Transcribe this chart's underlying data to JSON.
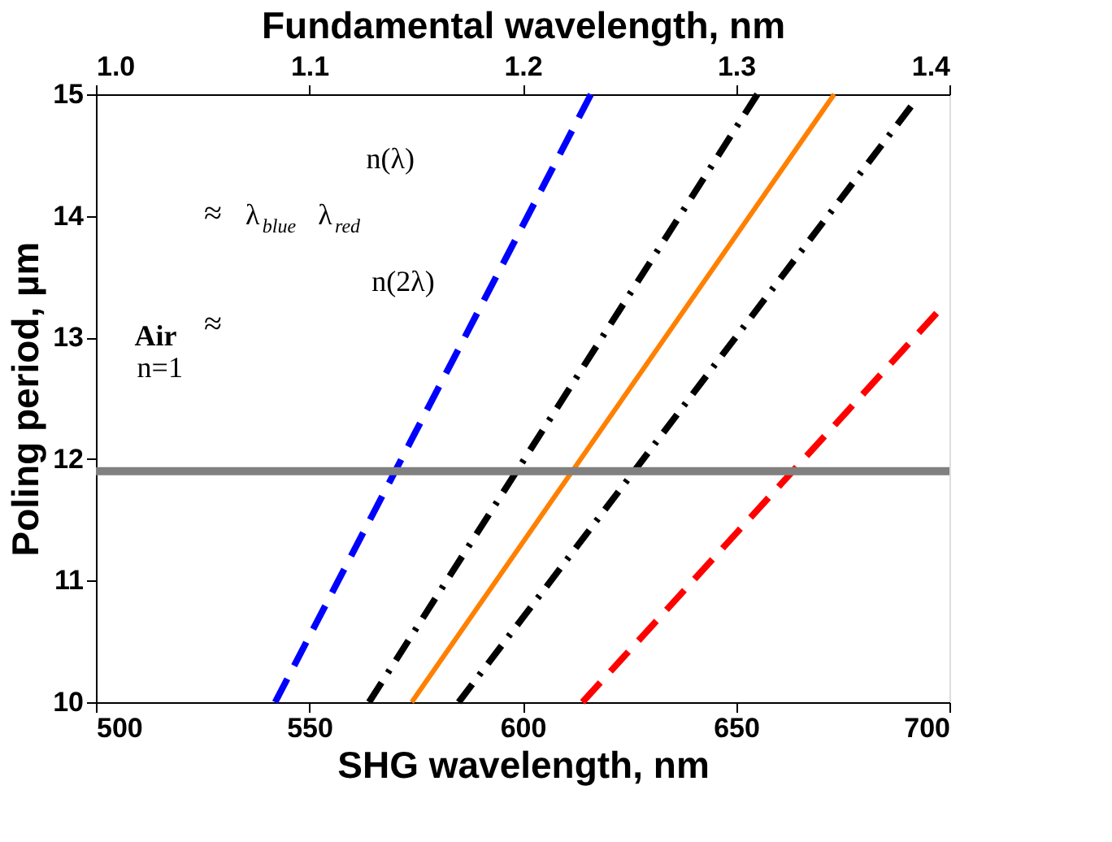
{
  "chart_data": {
    "type": "line",
    "xlabel": "SHG wavelength, nm",
    "ylabel": "Poling period, µm",
    "x2label": "Fundamental wavelength, nm",
    "xlim": [
      500,
      700
    ],
    "xticks": [
      500,
      550,
      600,
      650,
      700
    ],
    "ylim": [
      10,
      15
    ],
    "yticks": [
      10,
      11,
      12,
      13,
      14,
      15
    ],
    "x2lim": [
      1.0,
      1.4
    ],
    "x2ticks": [
      {
        "value": 1.0,
        "label": "1.0"
      },
      1.1,
      1.2,
      1.3,
      1.4
    ],
    "grid": false,
    "legend": false,
    "series": [
      {
        "color": "#0000ff",
        "line_style": "dashed",
        "x": [
          542,
          616
        ],
        "values": [
          10,
          15
        ]
      },
      {
        "color": "#000000",
        "line_style": "dashdot",
        "x": [
          564,
          655
        ],
        "values": [
          10,
          15
        ]
      },
      {
        "color": "#ff8000",
        "line_style": "solid",
        "x": [
          574,
          673
        ],
        "values": [
          10,
          15
        ]
      },
      {
        "color": "#000000",
        "line_style": "dashdot",
        "x": [
          585,
          691
        ],
        "values": [
          10,
          14.9
        ]
      },
      {
        "color": "#ff0000",
        "line_style": "dashed",
        "x": [
          614,
          697
        ],
        "values": [
          10,
          13.2
        ]
      }
    ],
    "ref_lines": [
      {
        "axis": "y",
        "value": 11.9,
        "color": "#808080",
        "line_style": "solid"
      }
    ],
    "annotations": [
      "n(λ)",
      "n(2λ)",
      "λ$_{blue}$",
      "λ$_{red}$",
      "Air",
      "n=1",
      "≈",
      "≈"
    ]
  }
}
